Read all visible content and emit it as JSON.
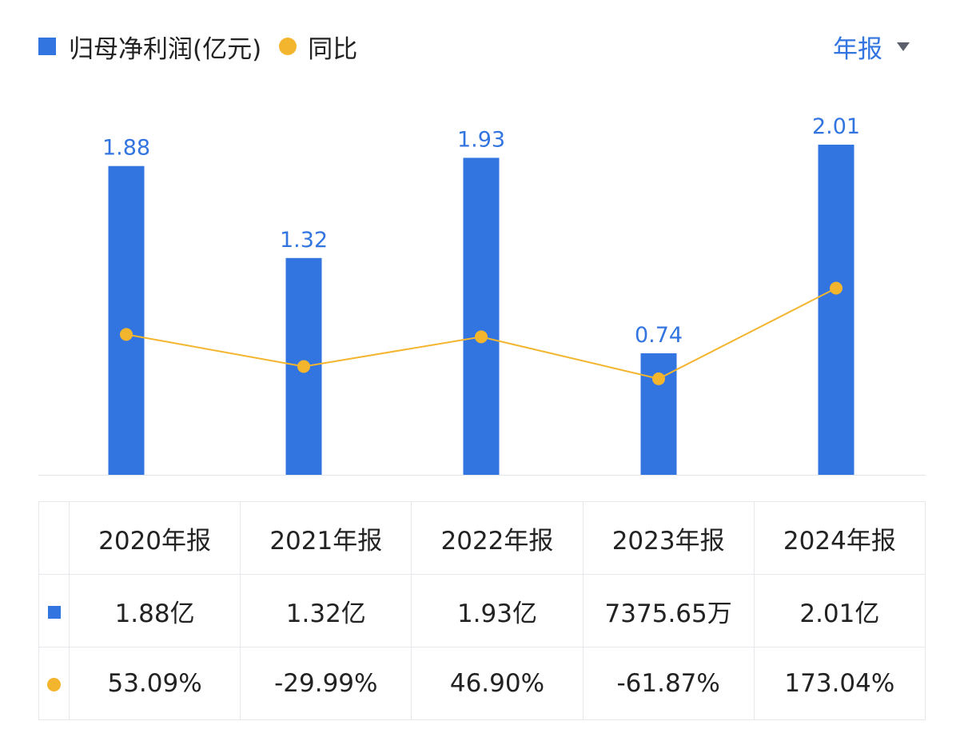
{
  "legend": {
    "bar_label": "归母净利润(亿元)",
    "line_label": "同比"
  },
  "period_selector": {
    "label": "年报"
  },
  "colors": {
    "bar": "#3275e0",
    "line": "#f3b52e",
    "positive": "#d9393f",
    "negative": "#1d9b5e"
  },
  "chart_data": {
    "type": "bar",
    "categories": [
      "2020年报",
      "2021年报",
      "2022年报",
      "2023年报",
      "2024年报"
    ],
    "series": [
      {
        "name": "归母净利润(亿元)",
        "type": "bar",
        "values": [
          1.88,
          1.32,
          1.93,
          0.74,
          2.01
        ],
        "labels": [
          "1.88",
          "1.32",
          "1.93",
          "0.74",
          "2.01"
        ]
      },
      {
        "name": "同比",
        "type": "line",
        "values": [
          53.09,
          -29.99,
          46.9,
          -61.87,
          173.04
        ],
        "unit": "%"
      }
    ],
    "grid": false,
    "legend_position": "top-left"
  },
  "table": {
    "headers": [
      "2020年报",
      "2021年报",
      "2022年报",
      "2023年报",
      "2024年报"
    ],
    "profit_row": [
      "1.88亿",
      "1.32亿",
      "1.93亿",
      "7375.65万",
      "2.01亿"
    ],
    "yoy_row": [
      "53.09%",
      "-29.99%",
      "46.90%",
      "-61.87%",
      "173.04%"
    ]
  }
}
